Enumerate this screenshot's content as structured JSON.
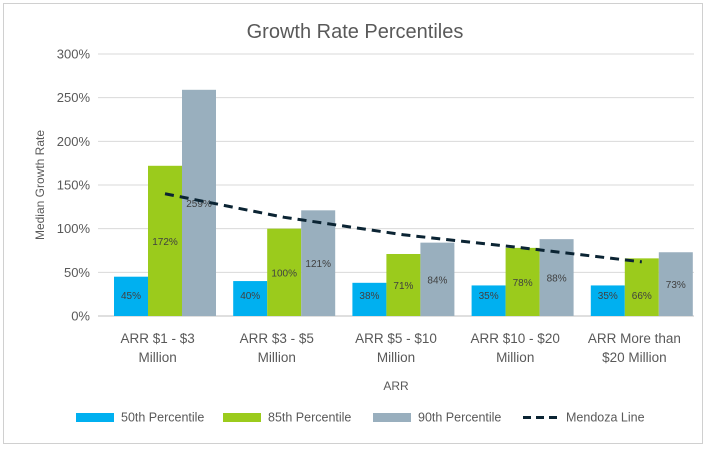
{
  "chart_data": {
    "type": "bar",
    "title": "Growth Rate Percentiles",
    "xlabel": "ARR",
    "ylabel": "Median Growth Rate",
    "ylim": [
      0,
      300
    ],
    "yticks": [
      "0%",
      "50%",
      "100%",
      "150%",
      "200%",
      "250%",
      "300%"
    ],
    "categories": [
      [
        "ARR $1 - $3",
        "Million"
      ],
      [
        "ARR $3 - $5",
        "Million"
      ],
      [
        "ARR $5 - $10",
        "Million"
      ],
      [
        "ARR $10 - $20",
        "Million"
      ],
      [
        "ARR More than",
        "$20 Million"
      ]
    ],
    "series": [
      {
        "name": "50th Percentile",
        "color": "#00B0F0",
        "values": [
          45,
          40,
          38,
          35,
          35
        ],
        "labels": [
          "45%",
          "40%",
          "38%",
          "35%",
          "35%"
        ]
      },
      {
        "name": "85th Percentile",
        "color": "#9BCB1C",
        "values": [
          172,
          100,
          71,
          78,
          66
        ],
        "labels": [
          "172%",
          "100%",
          "71%",
          "78%",
          "66%"
        ]
      },
      {
        "name": "90th Percentile",
        "color": "#99AFBE",
        "values": [
          259,
          121,
          84,
          88,
          73
        ],
        "labels": [
          "259%",
          "121%",
          "84%",
          "88%",
          "73%"
        ]
      }
    ],
    "line": {
      "name": "Mendoza Line",
      "color": "#0B2433",
      "style": "dashed",
      "values": [
        140,
        113,
        93,
        78,
        62
      ]
    },
    "grid": true,
    "legend": "bottom"
  }
}
